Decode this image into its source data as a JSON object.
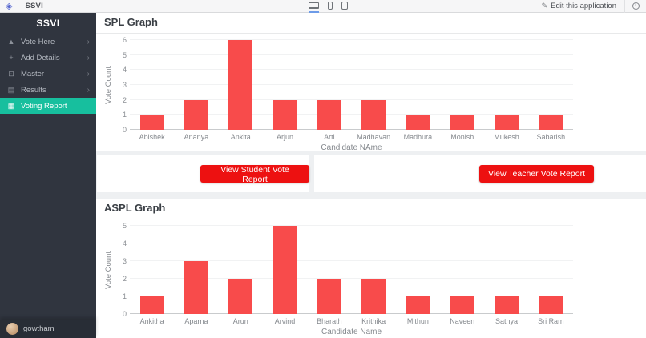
{
  "topbar": {
    "app_name": "SSVI",
    "edit_label": "Edit this application",
    "device_toggles": [
      {
        "name": "desktop-view",
        "active": true
      },
      {
        "name": "phone-view",
        "active": false
      },
      {
        "name": "tablet-view",
        "active": false
      }
    ]
  },
  "sidebar": {
    "title": "SSVI",
    "items": [
      {
        "label": "Vote Here",
        "icon": "ballot-icon",
        "chevron": true,
        "active": false
      },
      {
        "label": "Add Details",
        "icon": "add-details-icon",
        "chevron": true,
        "active": false
      },
      {
        "label": "Master",
        "icon": "master-icon",
        "chevron": true,
        "active": false
      },
      {
        "label": "Results",
        "icon": "results-icon",
        "chevron": true,
        "active": false
      },
      {
        "label": "Voting Report",
        "icon": "voting-report-icon",
        "chevron": false,
        "active": true
      }
    ],
    "user": "gowtham"
  },
  "buttons": {
    "student": "View Student Vote Report",
    "teacher": "View Teacher Vote Report"
  },
  "colors": {
    "accent_teal": "#17bf9e",
    "bar_red": "#f84b4b",
    "button_red": "#ed1111",
    "sidebar_bg": "#30353f"
  },
  "chart_data": [
    {
      "type": "bar",
      "title": "SPL Graph",
      "categories": [
        "Abishek",
        "Ananya",
        "Ankita",
        "Arjun",
        "Arti",
        "Madhavan",
        "Madhura",
        "Monish",
        "Mukesh",
        "Sabarish"
      ],
      "values": [
        1,
        2,
        6,
        2,
        2,
        2,
        1,
        1,
        1,
        1
      ],
      "xlabel": "Candidate NAme",
      "ylabel": "Vote Count",
      "ylim": [
        0,
        6
      ],
      "yticks": [
        0,
        1,
        2,
        3,
        4,
        5,
        6
      ],
      "bar_color": "#f84b4b",
      "grid": true,
      "legend": false
    },
    {
      "type": "bar",
      "title": "ASPL Graph",
      "categories": [
        "Ankitha",
        "Aparna",
        "Arun",
        "Arvind",
        "Bharath",
        "Krithika",
        "Mithun",
        "Naveen",
        "Sathya",
        "Sri Ram"
      ],
      "values": [
        1,
        3,
        2,
        5,
        2,
        2,
        1,
        1,
        1,
        1
      ],
      "xlabel": "Candidate Name",
      "ylabel": "Vote Count",
      "ylim": [
        0,
        5
      ],
      "yticks": [
        0,
        1,
        2,
        3,
        4,
        5
      ],
      "bar_color": "#f84b4b",
      "grid": true,
      "legend": false
    }
  ]
}
